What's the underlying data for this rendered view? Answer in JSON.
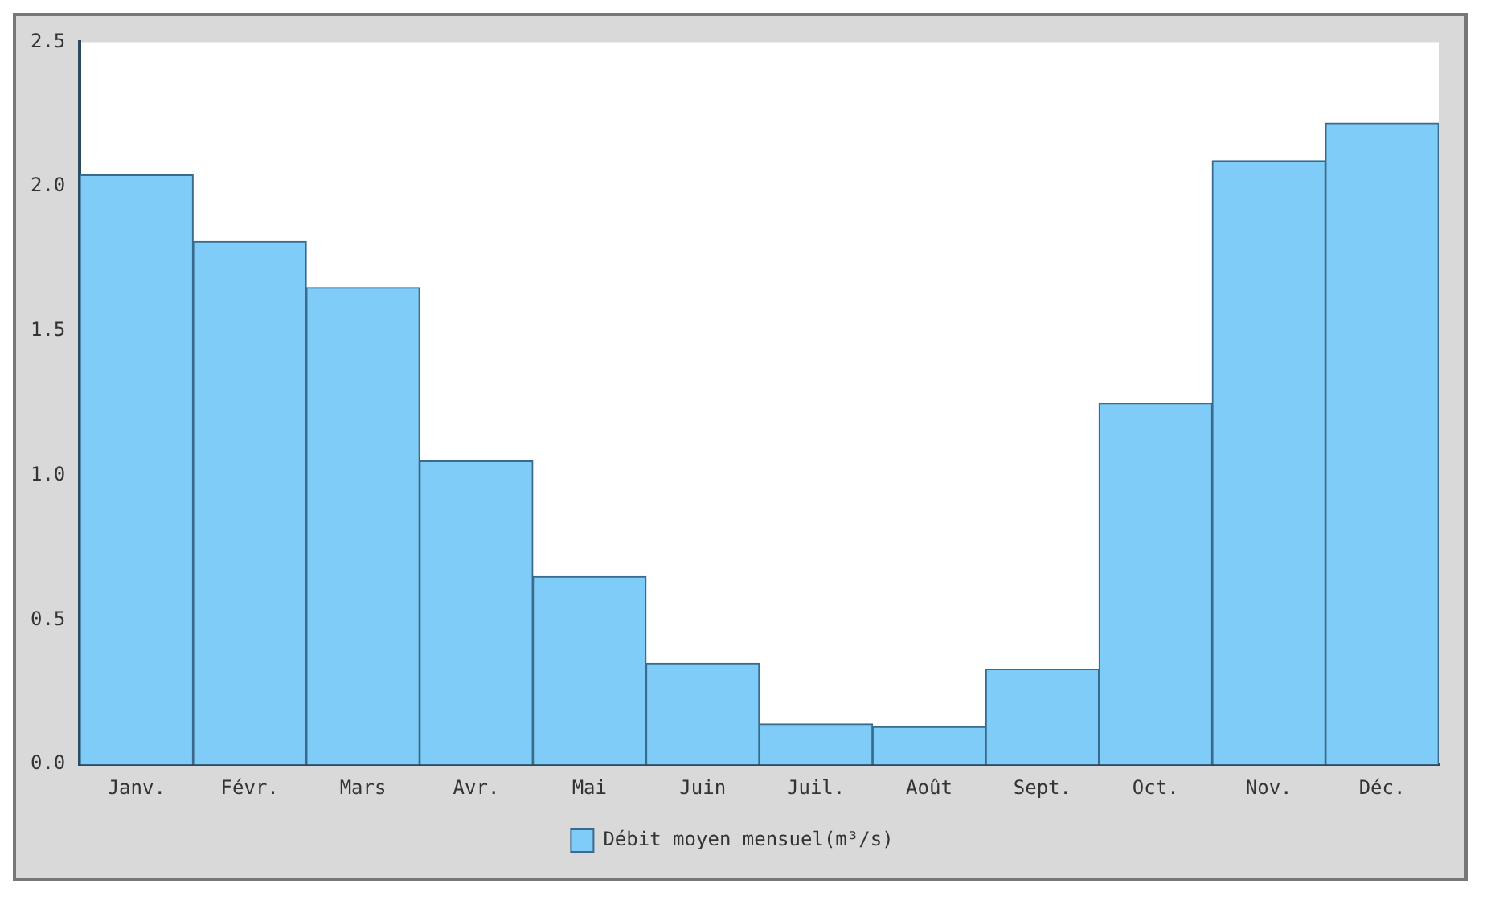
{
  "chart_data": {
    "type": "bar",
    "categories": [
      "Janv.",
      "Févr.",
      "Mars",
      "Avr.",
      "Mai",
      "Juin",
      "Juil.",
      "Août",
      "Sept.",
      "Oct.",
      "Nov.",
      "Déc."
    ],
    "series": [
      {
        "name": "Débit moyen mensuel(m³/s)",
        "color": "#80ccf8",
        "values": [
          2.04,
          1.81,
          1.65,
          1.05,
          0.65,
          0.35,
          0.14,
          0.13,
          0.33,
          1.25,
          2.09,
          2.22
        ]
      }
    ],
    "ylim": [
      0,
      2.5
    ],
    "yticks": [
      {
        "value": 0,
        "label": "0.0"
      },
      {
        "value": 0.5,
        "label": "0.5"
      },
      {
        "value": 1,
        "label": "1.0"
      },
      {
        "value": 1.5,
        "label": "1.5"
      },
      {
        "value": 2,
        "label": "2.0"
      },
      {
        "value": 2.5,
        "label": "2.5"
      }
    ],
    "grid": false,
    "legend": "bottom"
  }
}
